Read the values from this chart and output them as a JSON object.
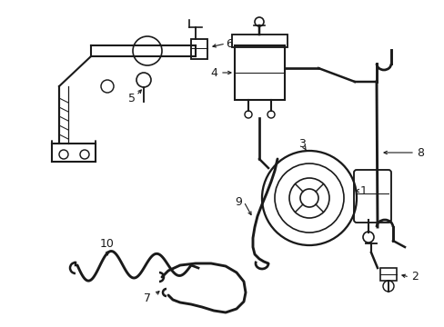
{
  "bg_color": "#ffffff",
  "line_color": "#1a1a1a",
  "figsize": [
    4.89,
    3.6
  ],
  "dpi": 100,
  "lw": 1.5
}
